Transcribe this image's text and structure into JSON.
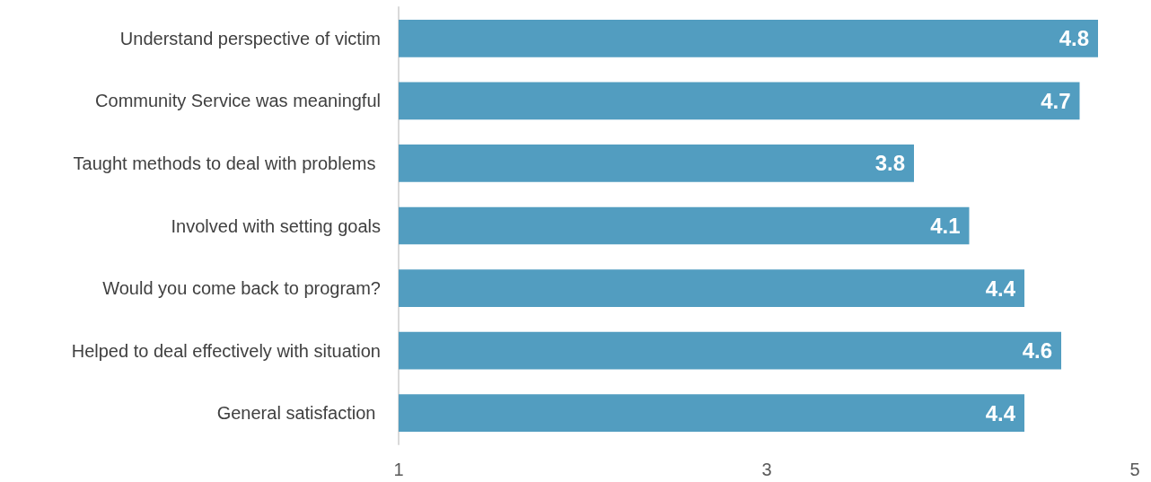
{
  "chart_data": {
    "type": "bar",
    "orientation": "horizontal",
    "categories": [
      "Understand perspective of victim",
      "Community Service was meaningful",
      "Taught methods to deal with problems ",
      "Involved with setting goals",
      "Would you come back to program?",
      "Helped to deal effectively with situation",
      "General satisfaction "
    ],
    "values": [
      4.8,
      4.7,
      3.8,
      4.1,
      4.4,
      4.6,
      4.4
    ],
    "color": "#529dc0",
    "xlim": [
      1,
      5
    ],
    "xticks": [
      1,
      3,
      5
    ],
    "data_labels": true
  }
}
